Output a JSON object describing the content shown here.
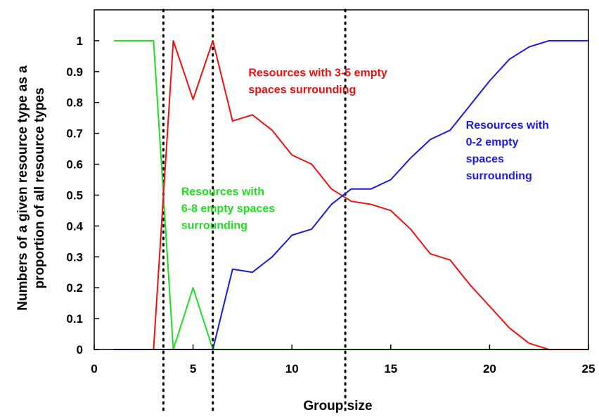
{
  "chart_data": {
    "type": "line",
    "title": "",
    "xlabel": "Group size",
    "ylabel_lines": [
      "Numbers of a given resource type as a",
      "proportion of all resource types"
    ],
    "xlim": [
      0,
      25
    ],
    "ylim": [
      0,
      1.1
    ],
    "xticks": [
      0,
      5,
      10,
      15,
      20,
      25
    ],
    "yticks": [
      0,
      0.1,
      0.2,
      0.3,
      0.4,
      0.5,
      0.6,
      0.7,
      0.8,
      0.9,
      1
    ],
    "grid": false,
    "legend": "none",
    "vertical_dotted_lines_x": [
      3.5,
      6,
      12.7
    ],
    "series": [
      {
        "color": "#22dd22",
        "x": [
          1,
          2,
          3,
          4,
          5,
          6,
          7,
          8,
          9,
          10,
          11,
          12,
          13,
          14,
          15,
          16,
          17,
          18,
          19,
          20,
          21,
          22,
          23,
          24,
          25
        ],
        "y": [
          1,
          1,
          1,
          0,
          0.2,
          0,
          0,
          0,
          0,
          0,
          0,
          0,
          0,
          0,
          0,
          0,
          0,
          0,
          0,
          0,
          0,
          0,
          0,
          0,
          0
        ]
      },
      {
        "color": "#ee1111",
        "x": [
          1,
          2,
          3,
          4,
          5,
          6,
          7,
          8,
          9,
          10,
          11,
          12,
          13,
          14,
          15,
          16,
          17,
          18,
          19,
          20,
          21,
          22,
          23,
          24,
          25
        ],
        "y": [
          0,
          0,
          0,
          1,
          0.81,
          1,
          0.74,
          0.76,
          0.71,
          0.63,
          0.6,
          0.52,
          0.48,
          0.47,
          0.45,
          0.39,
          0.31,
          0.29,
          0.21,
          0.14,
          0.07,
          0.02,
          0,
          0,
          0
        ]
      },
      {
        "color": "#1a1ae0",
        "x": [
          1,
          2,
          3,
          4,
          5,
          6,
          7,
          8,
          9,
          10,
          11,
          12,
          13,
          14,
          15,
          16,
          17,
          18,
          19,
          20,
          21,
          22,
          23,
          24,
          25
        ],
        "y": [
          0,
          0,
          0,
          0,
          0,
          0,
          0.26,
          0.25,
          0.3,
          0.37,
          0.39,
          0.47,
          0.52,
          0.52,
          0.55,
          0.62,
          0.68,
          0.71,
          0.79,
          0.87,
          0.94,
          0.98,
          1,
          1,
          1
        ]
      }
    ],
    "annotations": [
      {
        "lines": [
          "Resources with 3-5 empty",
          "spaces surrounding"
        ],
        "color": "#ee1111",
        "x": 7.8,
        "y": 0.885
      },
      {
        "lines": [
          "Resources with",
          "0-2 empty",
          "spaces",
          "surrounding"
        ],
        "color": "#1a1ae0",
        "x": 18.8,
        "y": 0.715
      },
      {
        "lines": [
          "Resources with",
          "6-8 empty spaces",
          "surrounding"
        ],
        "color": "#22dd22",
        "x": 4.4,
        "y": 0.5
      }
    ]
  }
}
